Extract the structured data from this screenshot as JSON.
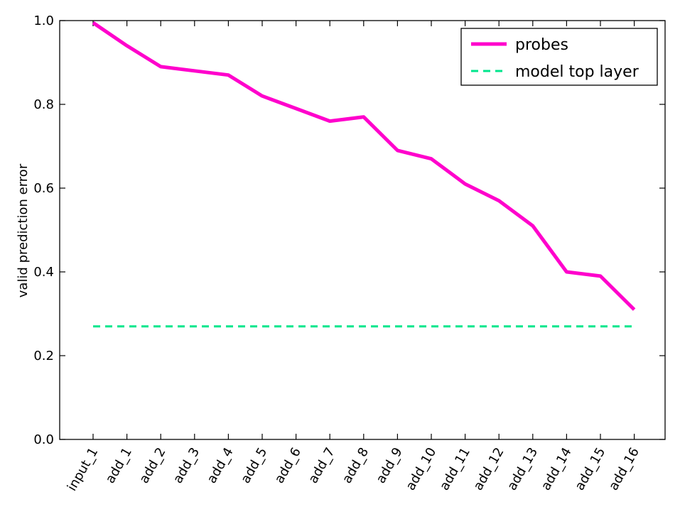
{
  "chart_data": {
    "type": "line",
    "title": "",
    "xlabel": "",
    "ylabel": "valid prediction error",
    "categories": [
      "input_1",
      "add_1",
      "add_2",
      "add_3",
      "add_4",
      "add_5",
      "add_6",
      "add_7",
      "add_8",
      "add_9",
      "add_10",
      "add_11",
      "add_12",
      "add_13",
      "add_14",
      "add_15",
      "add_16"
    ],
    "ylim": [
      0.0,
      1.0
    ],
    "yticks": [
      "0.0",
      "0.2",
      "0.4",
      "0.6",
      "0.8",
      "1.0"
    ],
    "grid": false,
    "legend_position": "top-right",
    "series": [
      {
        "name": "probes",
        "color": "#ff00cc",
        "style": "solid",
        "values": [
          0.995,
          0.94,
          0.89,
          0.88,
          0.87,
          0.82,
          0.79,
          0.76,
          0.77,
          0.69,
          0.67,
          0.61,
          0.57,
          0.51,
          0.4,
          0.39,
          0.31
        ]
      },
      {
        "name": "model top layer",
        "color": "#00e68c",
        "style": "dashed",
        "values": [
          0.27,
          0.27,
          0.27,
          0.27,
          0.27,
          0.27,
          0.27,
          0.27,
          0.27,
          0.27,
          0.27,
          0.27,
          0.27,
          0.27,
          0.27,
          0.27,
          0.27
        ]
      }
    ]
  }
}
